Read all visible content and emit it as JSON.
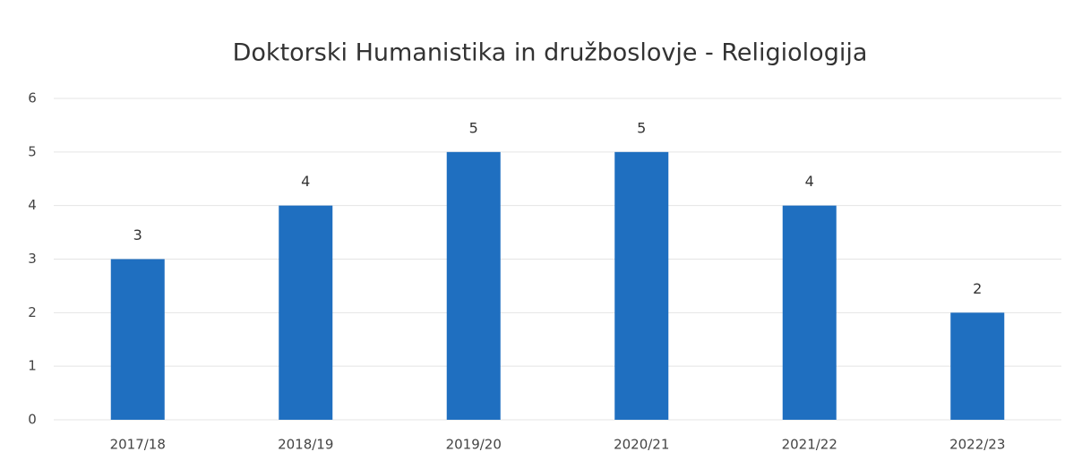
{
  "chart_data": {
    "type": "bar",
    "title": "Doktorski Humanistika in družboslovje - Religiologija",
    "categories": [
      "2017/18",
      "2018/19",
      "2019/20",
      "2020/21",
      "2021/22",
      "2022/23"
    ],
    "values": [
      3,
      4,
      5,
      5,
      4,
      2
    ],
    "color": "#1f6fc0",
    "ylim": [
      0,
      6
    ],
    "yticks": [
      0,
      1,
      2,
      3,
      4,
      5,
      6
    ],
    "grid": true
  }
}
